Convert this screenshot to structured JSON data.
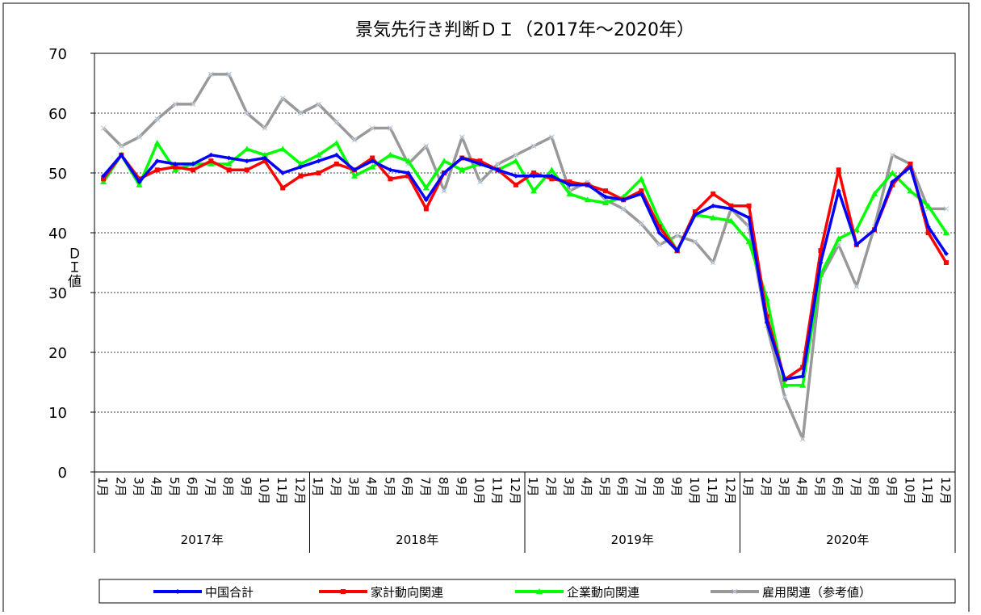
{
  "chart_data": {
    "type": "line",
    "title": "景気先行き判断ＤＩ（2017年～2020年）",
    "y_label": "ＤＩ値",
    "categories": [
      "1月",
      "2月",
      "3月",
      "4月",
      "5月",
      "6月",
      "7月",
      "8月",
      "9月",
      "10月",
      "11月",
      "12月",
      "1月",
      "2月",
      "3月",
      "4月",
      "5月",
      "6月",
      "7月",
      "8月",
      "9月",
      "10月",
      "11月",
      "12月",
      "1月",
      "2月",
      "3月",
      "4月",
      "5月",
      "6月",
      "7月",
      "8月",
      "9月",
      "10月",
      "11月",
      "12月",
      "1月",
      "2月",
      "3月",
      "4月",
      "5月",
      "6月",
      "7月",
      "8月",
      "9月",
      "10月",
      "11月",
      "12月"
    ],
    "year_groups": [
      "2017年",
      "2018年",
      "2019年",
      "2020年"
    ],
    "ylim": [
      0,
      70
    ],
    "yticks": [
      0,
      10,
      20,
      30,
      40,
      50,
      60,
      70
    ],
    "grid": true,
    "legend": "bottom",
    "series": [
      {
        "name": "中国合計",
        "color": "#0000ff",
        "marker": "diamond",
        "values": [
          49.5,
          53,
          48.5,
          52,
          51.5,
          51.5,
          53,
          52.5,
          52,
          52.5,
          50,
          51,
          52,
          53,
          50.5,
          52,
          50.5,
          50,
          45.5,
          50,
          52.5,
          51.5,
          50.5,
          49.5,
          49.5,
          49.5,
          48,
          48,
          46,
          45.5,
          46.5,
          40,
          37,
          43,
          44.5,
          44,
          42.5,
          25,
          15.5,
          16,
          35,
          47,
          38,
          40.5,
          48.5,
          51,
          41,
          36.5
        ]
      },
      {
        "name": "家計動向関連",
        "color": "#ff0000",
        "marker": "square",
        "values": [
          49,
          53,
          49,
          50.5,
          51,
          50.5,
          52,
          50.5,
          50.5,
          52,
          47.5,
          49.5,
          50,
          51.5,
          50.5,
          52.5,
          49,
          49.5,
          44,
          50,
          52.5,
          52,
          50.5,
          48,
          50,
          49,
          48.5,
          48,
          47,
          45.5,
          47,
          41,
          37,
          43.5,
          46.5,
          44.5,
          44.5,
          26,
          15.5,
          17.5,
          37,
          50.5,
          38,
          40.5,
          48,
          51.5,
          40,
          35
        ]
      },
      {
        "name": "企業動向関連",
        "color": "#00ff00",
        "marker": "triangle",
        "values": [
          48.5,
          53,
          48,
          55,
          50.5,
          51.5,
          51.5,
          51.5,
          54,
          53,
          54,
          51.5,
          53,
          55,
          49.5,
          51,
          53,
          52,
          47.5,
          52,
          50.5,
          51.5,
          50.5,
          52,
          47,
          50.5,
          46.5,
          45.5,
          45,
          46,
          49,
          42,
          37,
          43,
          42.5,
          42,
          38.5,
          29,
          14.5,
          14.5,
          33,
          39,
          40.5,
          46.5,
          50,
          47,
          44.5,
          40
        ]
      },
      {
        "name": "雇用関連（参考値）",
        "color": "#999999",
        "marker": "x",
        "values": [
          57.5,
          54.5,
          56,
          59,
          61.5,
          61.5,
          66.5,
          66.5,
          60,
          57.5,
          62.5,
          60,
          61.5,
          58.5,
          55.5,
          57.5,
          57.5,
          51.5,
          54.5,
          47,
          56,
          48.5,
          51.5,
          53,
          54.5,
          56,
          47,
          48.5,
          45.5,
          44,
          41.5,
          38,
          39.5,
          38.5,
          35,
          44,
          41,
          24.5,
          12.5,
          5.5,
          32.5,
          38,
          31,
          41,
          53,
          51.5,
          44,
          44
        ]
      }
    ]
  }
}
